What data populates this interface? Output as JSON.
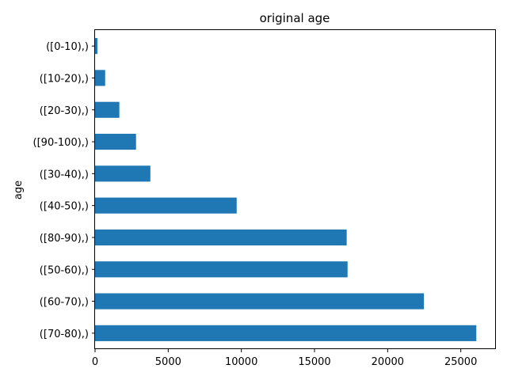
{
  "chart_data": {
    "type": "bar",
    "orientation": "horizontal",
    "title": "original age",
    "xlabel": "",
    "ylabel": "age",
    "categories": [
      "([0-10),)",
      "([10-20),)",
      "([20-30),)",
      "([90-100),)",
      "([30-40),)",
      "([40-50),)",
      "([80-90),)",
      "([50-60),)",
      "([60-70),)",
      "([70-80),)"
    ],
    "values": [
      160,
      690,
      1660,
      2800,
      3780,
      9680,
      17200,
      17260,
      22480,
      26060
    ],
    "xlim": [
      0,
      27400
    ],
    "xticks": [
      0,
      5000,
      10000,
      15000,
      20000,
      25000
    ],
    "bar_color": "#1f77b4",
    "grid": false,
    "legend": "none"
  }
}
